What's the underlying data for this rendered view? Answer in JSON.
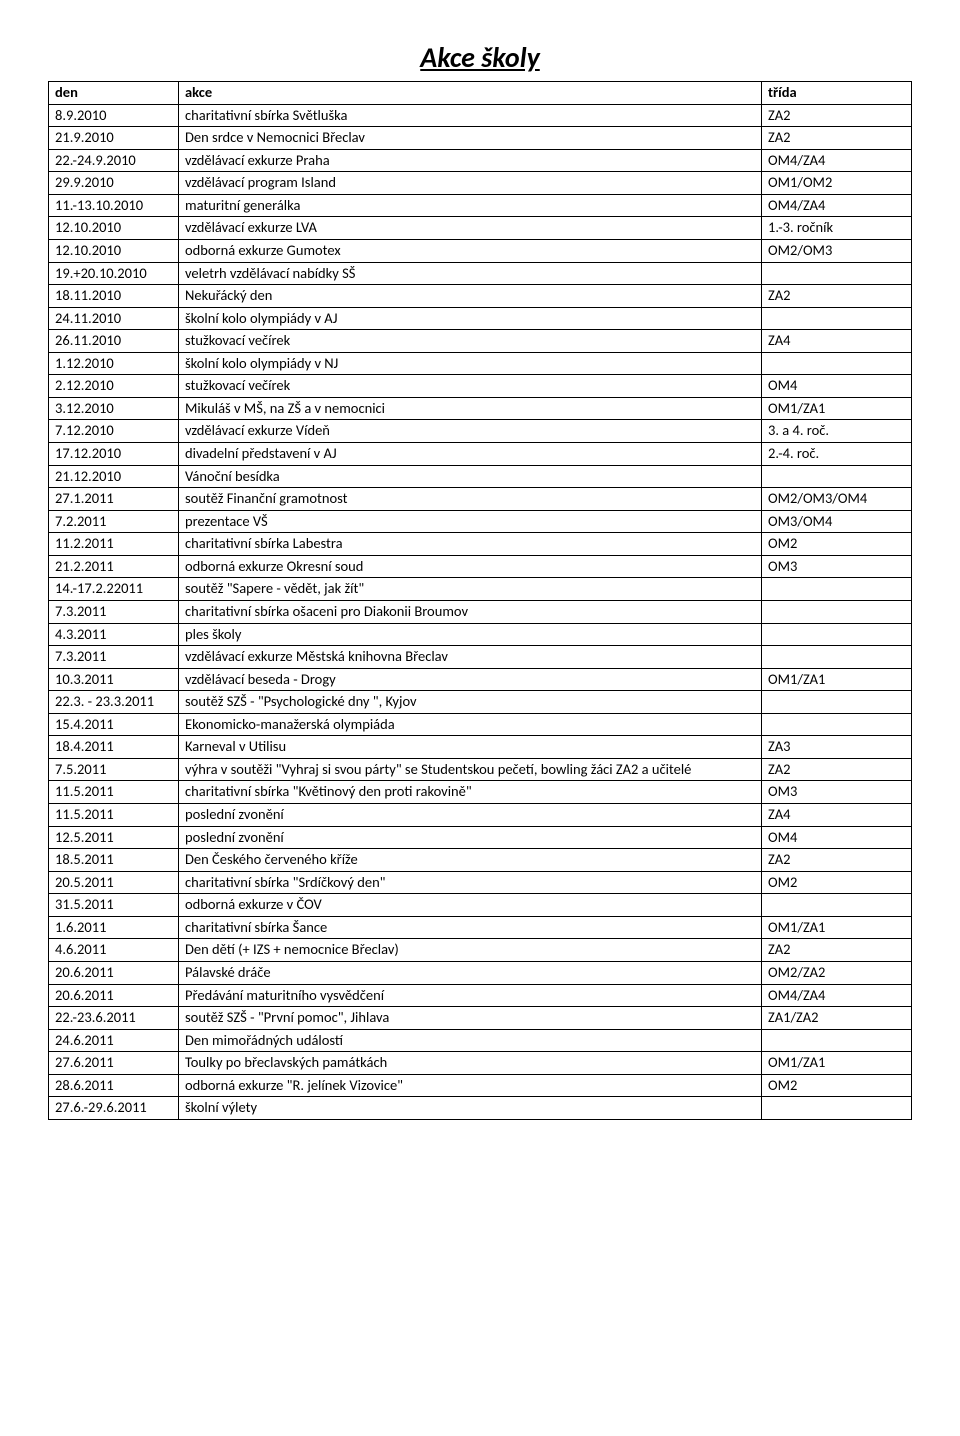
{
  "title": "Akce školy",
  "columns": [
    "den",
    "akce",
    "třída"
  ],
  "rows": [
    [
      "8.9.2010",
      "charitativní sbírka Světluška",
      "ZA2"
    ],
    [
      "21.9.2010",
      "Den srdce v Nemocnici Břeclav",
      "ZA2"
    ],
    [
      "22.-24.9.2010",
      "vzdělávací exkurze Praha",
      "OM4/ZA4"
    ],
    [
      "29.9.2010",
      "vzdělávací program Island",
      "OM1/OM2"
    ],
    [
      "11.-13.10.2010",
      "maturitní generálka",
      "OM4/ZA4"
    ],
    [
      "12.10.2010",
      "vzdělávací exkurze LVA",
      "1.-3. ročník"
    ],
    [
      "12.10.2010",
      "odborná exkurze Gumotex",
      "OM2/OM3"
    ],
    [
      "19.+20.10.2010",
      "veletrh vzdělávací nabídky SŠ",
      ""
    ],
    [
      "18.11.2010",
      "Nekuřácký den",
      "ZA2"
    ],
    [
      "24.11.2010",
      "školní kolo olympiády v AJ",
      ""
    ],
    [
      "26.11.2010",
      "stužkovací večírek",
      "ZA4"
    ],
    [
      "1.12.2010",
      "školní kolo olympiády v NJ",
      ""
    ],
    [
      "2.12.2010",
      "stužkovací večírek",
      "OM4"
    ],
    [
      "3.12.2010",
      "Mikuláš v MŠ, na ZŠ a v nemocnici",
      "OM1/ZA1"
    ],
    [
      "7.12.2010",
      "vzdělávací exkurze Vídeň",
      "3. a 4. roč."
    ],
    [
      "17.12.2010",
      "divadelní představení v AJ",
      "2.-4. roč."
    ],
    [
      "21.12.2010",
      "Vánoční besídka",
      ""
    ],
    [
      "27.1.2011",
      "soutěž Finanční gramotnost",
      "OM2/OM3/OM4"
    ],
    [
      "7.2.2011",
      "prezentace VŠ",
      "OM3/OM4"
    ],
    [
      "11.2.2011",
      "charitativní sbírka Labestra",
      "OM2"
    ],
    [
      "21.2.2011",
      "odborná exkurze Okresní soud",
      "OM3"
    ],
    [
      "14.-17.2.22011",
      "soutěž \"Sapere - vědět, jak žít\"",
      ""
    ],
    [
      "7.3.2011",
      "charitativní sbírka ošaceni pro Diakonii Broumov",
      ""
    ],
    [
      "4.3.2011",
      "ples školy",
      ""
    ],
    [
      "7.3.2011",
      "vzdělávací exkurze Městská knihovna Břeclav",
      ""
    ],
    [
      "10.3.2011",
      "vzdělávací beseda - Drogy",
      "OM1/ZA1"
    ],
    [
      "22.3. - 23.3.2011",
      "soutěž SZŠ - \"Psychologické dny \", Kyjov",
      ""
    ],
    [
      "15.4.2011",
      "Ekonomicko-manažerská olympiáda",
      ""
    ],
    [
      "18.4.2011",
      "Karneval v Utilisu",
      "ZA3"
    ],
    [
      "7.5.2011",
      "výhra v soutěži \"Vyhraj si svou párty\" se Studentskou pečetí, bowling žáci ZA2 a učitelé",
      "ZA2"
    ],
    [
      "11.5.2011",
      "charitativní sbírka \"Květinový den proti rakovině\"",
      "OM3"
    ],
    [
      "11.5.2011",
      "poslední zvonění",
      "ZA4"
    ],
    [
      "12.5.2011",
      "poslední zvonění",
      "OM4"
    ],
    [
      "18.5.2011",
      "Den Českého červeného kříže",
      "ZA2"
    ],
    [
      "20.5.2011",
      "charitativní sbírka \"Srdíčkový den\"",
      "OM2"
    ],
    [
      "31.5.2011",
      "odborná exkurze v ČOV",
      ""
    ],
    [
      "1.6.2011",
      "charitativní sbírka Šance",
      "OM1/ZA1"
    ],
    [
      "4.6.2011",
      "Den dětí (+ IZS + nemocnice Břeclav)",
      "ZA2"
    ],
    [
      "20.6.2011",
      "Pálavské dráče",
      "OM2/ZA2"
    ],
    [
      "20.6.2011",
      "Předávání maturitního vysvědčení",
      "OM4/ZA4"
    ],
    [
      "22.-23.6.2011",
      "soutěž SZŠ - \"První pomoc\", Jihlava",
      "ZA1/ZA2"
    ],
    [
      "24.6.2011",
      "Den mimořádných událostí",
      ""
    ],
    [
      "27.6.2011",
      "Toulky po břeclavských památkách",
      "OM1/ZA1"
    ],
    [
      "28.6.2011",
      "odborná exkurze \"R. jelínek Vizovice\"",
      "OM2"
    ],
    [
      "27.6.-29.6.2011",
      "školní výlety",
      ""
    ]
  ]
}
